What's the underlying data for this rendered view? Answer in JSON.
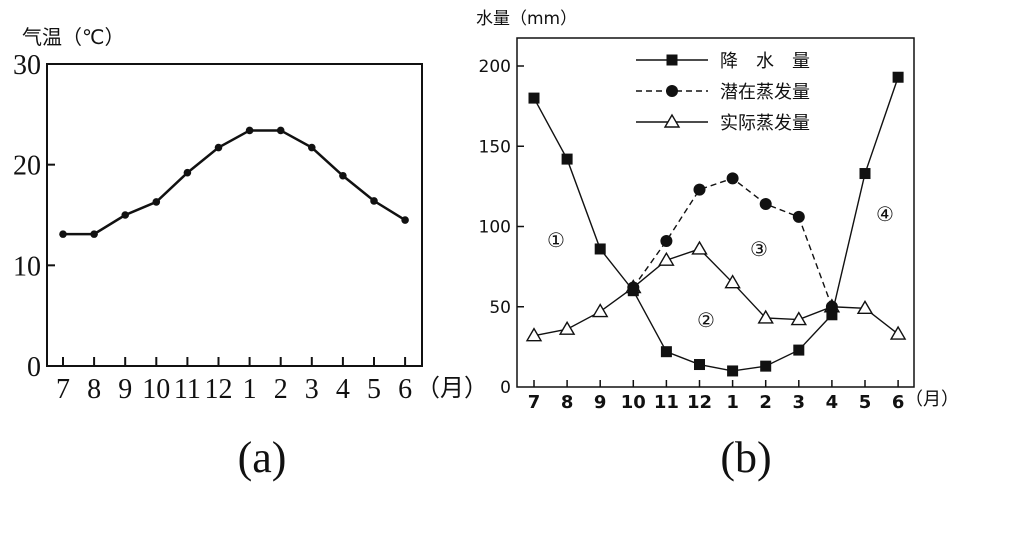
{
  "chart_data": [
    {
      "type": "line",
      "panel_label": "(a)",
      "ylabel": "气温（℃）",
      "x_unit": "（月）",
      "categories": [
        "7",
        "8",
        "9",
        "10",
        "11",
        "12",
        "1",
        "2",
        "3",
        "4",
        "5",
        "6"
      ],
      "ylim": [
        0,
        30
      ],
      "yticks": [
        0,
        10,
        20,
        30
      ],
      "grid": false,
      "series": [
        {
          "values": [
            13.1,
            13.1,
            15.0,
            16.3,
            19.2,
            21.7,
            23.4,
            23.4,
            21.7,
            18.9,
            16.4,
            14.5
          ]
        }
      ]
    },
    {
      "type": "line",
      "panel_label": "(b)",
      "ylabel": "水量（mm）",
      "x_unit": "（月）",
      "categories": [
        "7",
        "8",
        "9",
        "10",
        "11",
        "12",
        "1",
        "2",
        "3",
        "4",
        "5",
        "6"
      ],
      "ylim": [
        0,
        200
      ],
      "yticks": [
        0,
        50,
        100,
        150,
        200
      ],
      "grid": false,
      "legend_position": "top-center",
      "series": [
        {
          "name": "降　水　量",
          "marker": "square",
          "dash": "solid",
          "values": [
            180,
            142,
            86,
            60,
            22,
            14,
            10,
            13,
            23,
            45,
            133,
            193
          ]
        },
        {
          "name": "潜在蒸发量",
          "marker": "circle",
          "dash": "dashed",
          "values": [
            null,
            null,
            null,
            62,
            91,
            123,
            130,
            114,
            106,
            50,
            null,
            null
          ]
        },
        {
          "name": "实际蒸发量",
          "marker": "triangle",
          "dash": "solid",
          "values": [
            32,
            36,
            47,
            62,
            79,
            86,
            65,
            43,
            42,
            50,
            49,
            33
          ]
        }
      ],
      "annotations": [
        {
          "text": "①",
          "x": 8.4,
          "y": 90
        },
        {
          "text": "②",
          "x": 12.3,
          "y": 40
        },
        {
          "text": "③",
          "x": 2.0,
          "y": 85
        },
        {
          "text": "④",
          "x": 5.3,
          "y": 105
        }
      ]
    }
  ]
}
